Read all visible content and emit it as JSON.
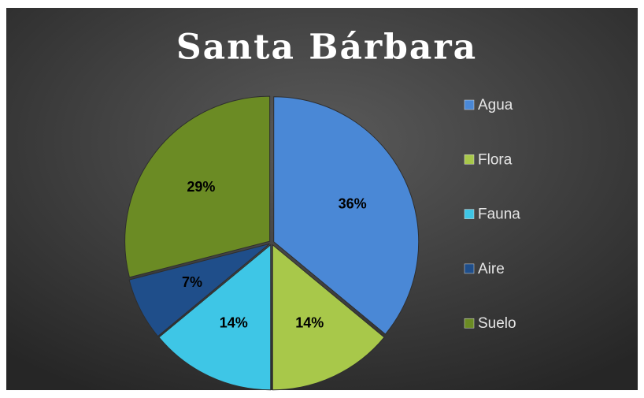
{
  "chart_data": {
    "type": "pie",
    "title": "Santa Bárbara",
    "categories": [
      "Agua",
      "Flora",
      "Fauna",
      "Aire",
      "Suelo"
    ],
    "values": [
      36,
      14,
      14,
      7,
      29
    ],
    "value_labels": [
      "36%",
      "14%",
      "14%",
      "7%",
      "29%"
    ],
    "colors": [
      "#4a88d6",
      "#a8c84a",
      "#3ec6e6",
      "#1f4e8a",
      "#6b8b24"
    ],
    "legend": "right"
  }
}
